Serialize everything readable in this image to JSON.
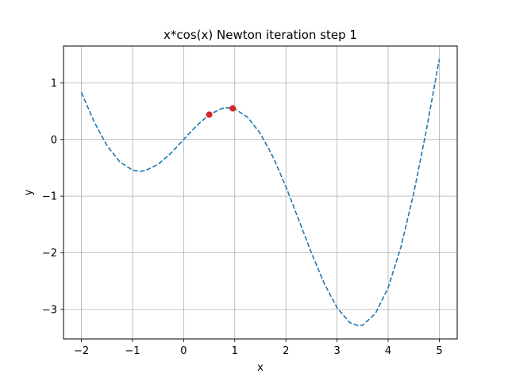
{
  "chart_data": {
    "type": "line",
    "title": "x*cos(x) Newton iteration step 1",
    "xlabel": "x",
    "ylabel": "y",
    "xlim": [
      -2.35,
      5.35
    ],
    "ylim": [
      -3.52,
      1.65
    ],
    "grid": true,
    "x_ticks": [
      -2,
      -1,
      0,
      1,
      2,
      3,
      4,
      5
    ],
    "x_tick_labels": [
      "−2",
      "−1",
      "0",
      "1",
      "2",
      "3",
      "4",
      "5"
    ],
    "y_ticks": [
      -3,
      -2,
      -1,
      0,
      1
    ],
    "y_tick_labels": [
      "−3",
      "−2",
      "−1",
      "0",
      "1"
    ],
    "series": [
      {
        "style": "dashed",
        "color": "#1f77b4",
        "x": [
          -2.0,
          -1.75,
          -1.5,
          -1.25,
          -1.0,
          -0.86,
          -0.75,
          -0.5,
          -0.25,
          0.0,
          0.25,
          0.5,
          0.75,
          0.86,
          1.0,
          1.25,
          1.5,
          1.75,
          2.0,
          2.25,
          2.5,
          2.75,
          3.0,
          3.25,
          3.43,
          3.5,
          3.75,
          4.0,
          4.25,
          4.5,
          4.75,
          5.0
        ],
        "y": [
          0.832,
          0.311,
          -0.106,
          -0.394,
          -0.54,
          -0.561,
          -0.549,
          -0.439,
          -0.242,
          0.0,
          0.242,
          0.439,
          0.549,
          0.561,
          0.54,
          0.394,
          0.106,
          -0.311,
          -0.832,
          -1.416,
          -2.003,
          -2.542,
          -2.97,
          -3.234,
          -3.288,
          -3.279,
          -3.072,
          -2.615,
          -1.894,
          -0.948,
          0.18,
          1.418
        ]
      }
    ],
    "points": {
      "color": "#d62728",
      "x": [
        0.5,
        0.96
      ],
      "y": [
        0.439,
        0.55
      ]
    }
  }
}
